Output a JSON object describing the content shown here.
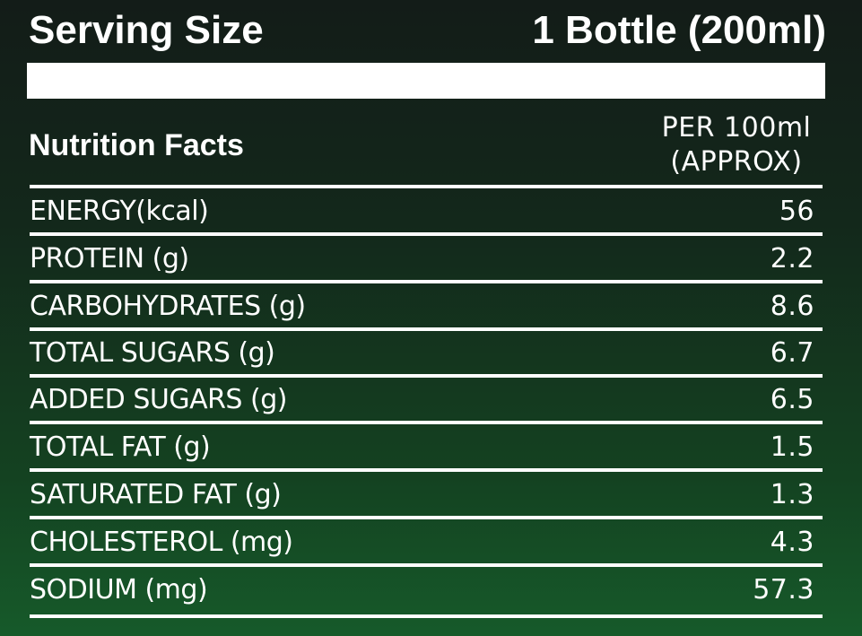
{
  "header": {
    "serving_label": "Serving Size",
    "serving_value": "1 Bottle (200ml)"
  },
  "facts": {
    "title": "Nutrition Facts",
    "per_line1": "PER 100ml",
    "per_line2": "(APPROX)"
  },
  "rows": [
    {
      "label": "ENERGY(kcal)",
      "value": "56"
    },
    {
      "label": "PROTEIN (g)",
      "value": "2.2"
    },
    {
      "label": "CARBOHYDRATES (g)",
      "value": "8.6"
    },
    {
      "label": "TOTAL SUGARS (g)",
      "value": "6.7"
    },
    {
      "label": "ADDED SUGARS (g)",
      "value": "6.5"
    },
    {
      "label": "TOTAL FAT (g)",
      "value": "1.5"
    },
    {
      "label": "SATURATED FAT (g)",
      "value": "1.3"
    },
    {
      "label": "CHOLESTEROL (mg)",
      "value": "4.3"
    },
    {
      "label": "SODIUM (mg)",
      "value": "57.3"
    }
  ],
  "colors": {
    "background_top": "#131c18",
    "background_bottom": "#165a2a",
    "text": "#ffffff",
    "rule": "#ffffff"
  }
}
